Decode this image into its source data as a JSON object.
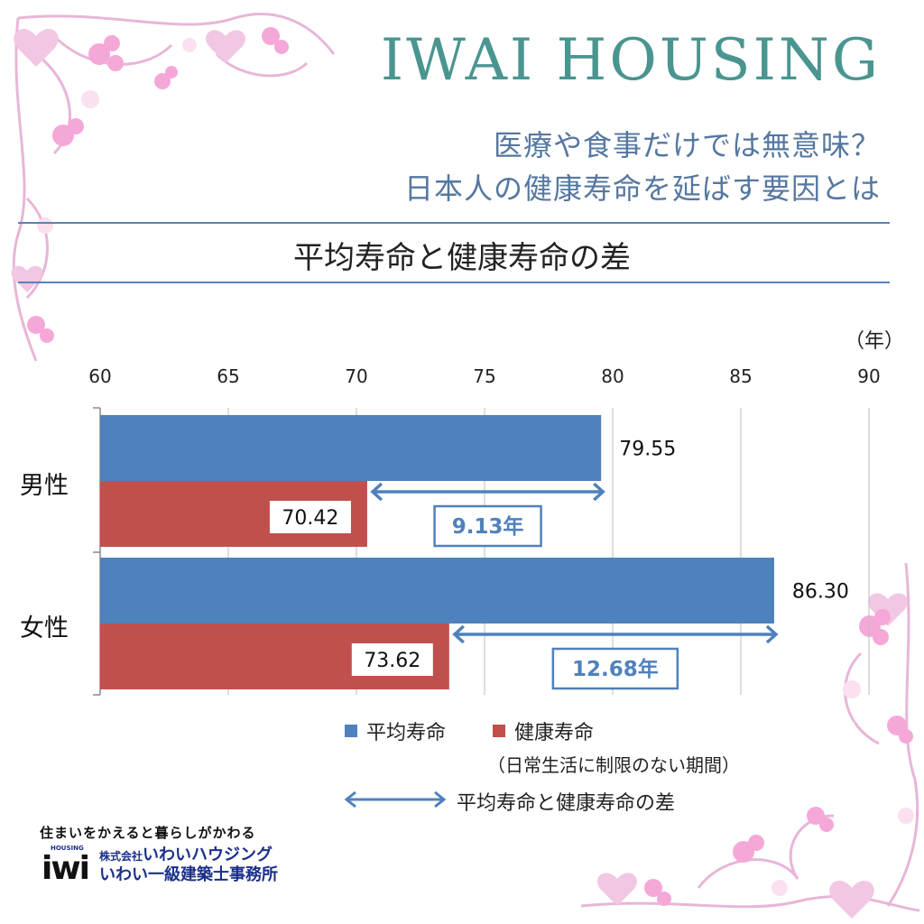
{
  "header": {
    "brand": "IWAI HOUSING",
    "headline_line1": "医療や食事だけでは無意味？",
    "headline_line2": "日本人の健康寿命を延ばす要因とは"
  },
  "colors": {
    "average_life": "#4f81bd",
    "healthy_life": "#c0504d",
    "arrow": "#4f81bd",
    "brand": "#4a9590",
    "rule": "#5b82b8"
  },
  "chart_data": {
    "type": "bar",
    "orientation": "horizontal",
    "title": "平均寿命と健康寿命の差",
    "unit": "（年）",
    "xlim": [
      60,
      90
    ],
    "x_ticks": [
      "60",
      "65",
      "70",
      "75",
      "80",
      "85",
      "90"
    ],
    "grid": true,
    "categories": [
      "男性",
      "女性"
    ],
    "series": [
      {
        "name": "平均寿命",
        "values": [
          79.55,
          86.3
        ],
        "labels": [
          "79.55",
          "86.30"
        ],
        "color": "#4f81bd"
      },
      {
        "name": "健康寿命",
        "values": [
          70.42,
          73.62
        ],
        "labels": [
          "70.42",
          "73.62"
        ],
        "color": "#c0504d"
      }
    ],
    "differences": [
      {
        "category": "男性",
        "from": 70.42,
        "to": 79.55,
        "label": "9.13年"
      },
      {
        "category": "女性",
        "from": 73.62,
        "to": 86.3,
        "label": "12.68年"
      }
    ],
    "legend": {
      "average_label": "平均寿命",
      "healthy_label": "健康寿命",
      "healthy_note": "（日常生活に制限のない期間）",
      "arrow_label": "平均寿命と健康寿命の差"
    }
  },
  "footer": {
    "tagline": "住まいをかえると暮らしがかわる",
    "logo_small": "HOUSING",
    "logo_text": "iwi",
    "company_prefix": "株式会社",
    "company_name": "いわいハウジング",
    "office_name": "いわい一級建築士事務所"
  }
}
